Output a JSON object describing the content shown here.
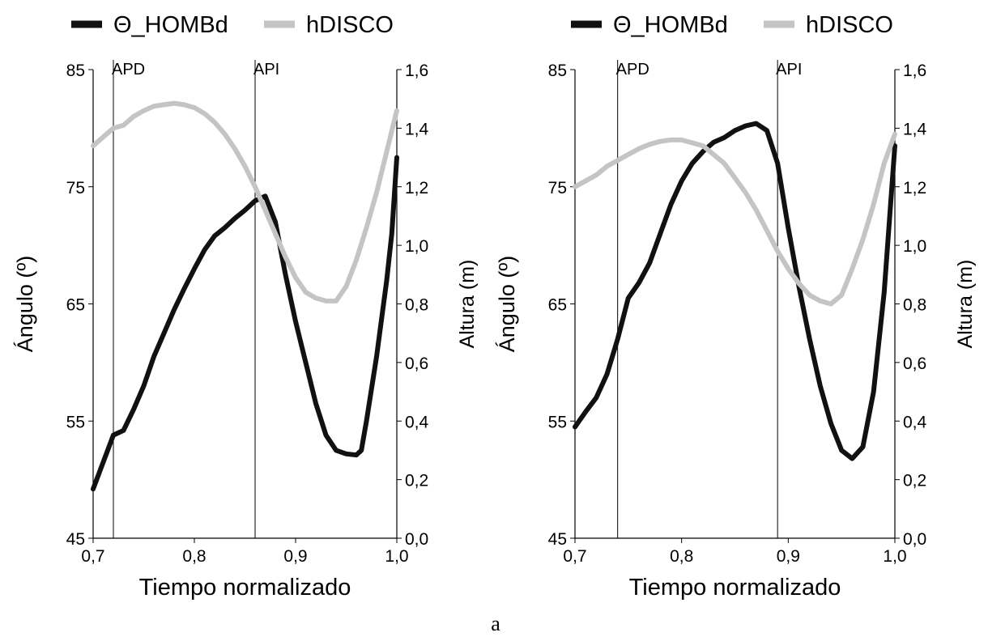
{
  "figure_label": "a",
  "colors": {
    "shoulder_line": "#111111",
    "disc_line": "#c4c4c4",
    "axis": "#000000"
  },
  "chart_data": [
    {
      "type": "line",
      "xlabel": "Tiempo normalizado",
      "ylabel_left": "Ángulo (º)",
      "ylabel_right": "Altura (m)",
      "xlim": [
        0.7,
        1.0
      ],
      "ylim_left": [
        45,
        85
      ],
      "ylim_right": [
        0.0,
        1.6
      ],
      "x_ticks": [
        "0,7",
        "0,8",
        "0,9",
        "1,0"
      ],
      "y_ticks_left": [
        "45",
        "55",
        "65",
        "75",
        "85"
      ],
      "y_ticks_right": [
        "0,0",
        "0,2",
        "0,4",
        "0,6",
        "0,8",
        "1,0",
        "1,2",
        "1,4",
        "1,6"
      ],
      "grid": false,
      "legend_position": "top",
      "markers": [
        {
          "label": "APD",
          "x": 0.72
        },
        {
          "label": "API",
          "x": 0.86
        }
      ],
      "series": [
        {
          "name": "Θ_HOMBd",
          "axis": "left",
          "x": [
            0.7,
            0.71,
            0.72,
            0.73,
            0.74,
            0.75,
            0.76,
            0.77,
            0.78,
            0.79,
            0.8,
            0.81,
            0.82,
            0.83,
            0.84,
            0.85,
            0.86,
            0.87,
            0.88,
            0.89,
            0.9,
            0.91,
            0.92,
            0.93,
            0.94,
            0.95,
            0.96,
            0.965,
            0.97,
            0.98,
            0.99,
            0.995,
            1.0
          ],
          "values": [
            49.2,
            51.5,
            53.8,
            54.2,
            56.0,
            58.0,
            60.5,
            62.5,
            64.5,
            66.3,
            68.0,
            69.6,
            70.8,
            71.5,
            72.3,
            73.0,
            73.8,
            74.2,
            72.0,
            67.5,
            63.5,
            60.0,
            56.5,
            53.8,
            52.5,
            52.2,
            52.1,
            52.5,
            55.0,
            60.5,
            67.0,
            71.0,
            77.5
          ]
        },
        {
          "name": "hDISCO",
          "axis": "right",
          "x": [
            0.7,
            0.71,
            0.72,
            0.73,
            0.74,
            0.75,
            0.76,
            0.77,
            0.78,
            0.79,
            0.8,
            0.81,
            0.82,
            0.83,
            0.84,
            0.85,
            0.86,
            0.87,
            0.88,
            0.89,
            0.9,
            0.91,
            0.92,
            0.93,
            0.94,
            0.95,
            0.96,
            0.97,
            0.98,
            0.99,
            1.0
          ],
          "values": [
            1.34,
            1.37,
            1.4,
            1.41,
            1.44,
            1.46,
            1.475,
            1.48,
            1.485,
            1.48,
            1.47,
            1.45,
            1.42,
            1.38,
            1.33,
            1.27,
            1.2,
            1.12,
            1.04,
            0.96,
            0.89,
            0.84,
            0.82,
            0.81,
            0.81,
            0.86,
            0.95,
            1.06,
            1.18,
            1.32,
            1.46
          ]
        }
      ]
    },
    {
      "type": "line",
      "xlabel": "Tiempo normalizado",
      "ylabel_left": "Ángulo (º)",
      "ylabel_right": "Altura (m)",
      "xlim": [
        0.7,
        1.0
      ],
      "ylim_left": [
        45,
        85
      ],
      "ylim_right": [
        0.0,
        1.6
      ],
      "x_ticks": [
        "0,7",
        "0,8",
        "0,9",
        "1,0"
      ],
      "y_ticks_left": [
        "45",
        "55",
        "65",
        "75",
        "85"
      ],
      "y_ticks_right": [
        "0,0",
        "0,2",
        "0,4",
        "0,6",
        "0,8",
        "1,0",
        "1,2",
        "1,4",
        "1,6"
      ],
      "grid": false,
      "legend_position": "top",
      "markers": [
        {
          "label": "APD",
          "x": 0.74
        },
        {
          "label": "API",
          "x": 0.89
        }
      ],
      "series": [
        {
          "name": "Θ_HOMBd",
          "axis": "left",
          "x": [
            0.7,
            0.71,
            0.72,
            0.73,
            0.74,
            0.75,
            0.76,
            0.77,
            0.78,
            0.79,
            0.8,
            0.81,
            0.82,
            0.83,
            0.84,
            0.85,
            0.86,
            0.87,
            0.88,
            0.89,
            0.9,
            0.91,
            0.92,
            0.93,
            0.94,
            0.95,
            0.96,
            0.97,
            0.98,
            0.99,
            1.0
          ],
          "values": [
            54.5,
            55.8,
            57.0,
            59.0,
            62.0,
            65.5,
            66.8,
            68.5,
            71.0,
            73.5,
            75.5,
            77.0,
            78.0,
            78.8,
            79.2,
            79.8,
            80.2,
            80.4,
            79.8,
            77.0,
            71.5,
            66.5,
            62.0,
            58.0,
            54.8,
            52.5,
            51.8,
            52.8,
            57.5,
            66.0,
            78.5
          ]
        },
        {
          "name": "hDISCO",
          "axis": "right",
          "x": [
            0.7,
            0.71,
            0.72,
            0.73,
            0.74,
            0.75,
            0.76,
            0.77,
            0.78,
            0.79,
            0.8,
            0.81,
            0.82,
            0.83,
            0.84,
            0.85,
            0.86,
            0.87,
            0.88,
            0.89,
            0.9,
            0.91,
            0.92,
            0.93,
            0.94,
            0.95,
            0.96,
            0.97,
            0.98,
            0.99,
            1.0
          ],
          "values": [
            1.2,
            1.22,
            1.24,
            1.27,
            1.29,
            1.31,
            1.33,
            1.345,
            1.355,
            1.36,
            1.36,
            1.35,
            1.34,
            1.31,
            1.28,
            1.23,
            1.18,
            1.12,
            1.05,
            0.98,
            0.92,
            0.87,
            0.83,
            0.81,
            0.8,
            0.83,
            0.92,
            1.02,
            1.14,
            1.28,
            1.38
          ]
        }
      ]
    }
  ]
}
